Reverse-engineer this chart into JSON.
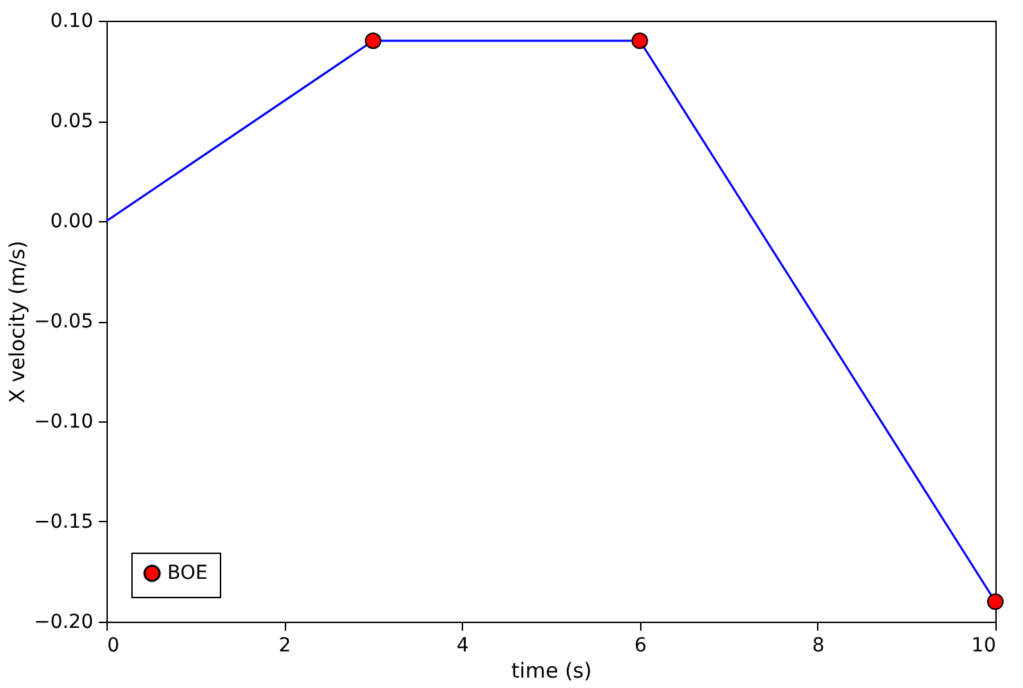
{
  "chart_data": {
    "type": "line",
    "xlabel": "time (s)",
    "ylabel": "X velocity (m/s)",
    "series": [
      {
        "type": "line",
        "color": "#0000ff",
        "x": [
          0,
          3,
          6,
          10
        ],
        "values": [
          0,
          0.09,
          0.09,
          -0.19
        ],
        "line_style": "solid",
        "marker": "none"
      },
      {
        "type": "scatter",
        "name": "BOE",
        "color": "#ff0000",
        "x": [
          3,
          6,
          10
        ],
        "values": [
          0.09,
          0.09,
          -0.19
        ],
        "marker": "circle"
      }
    ],
    "xlim": [
      0,
      10
    ],
    "xticks": [
      0,
      2,
      4,
      6,
      8,
      10
    ],
    "ylim": [
      -0.2,
      0.1
    ],
    "yticks": [
      {
        "value": -0.2,
        "label": "−0.20"
      },
      {
        "value": -0.15,
        "label": "−0.15"
      },
      {
        "value": -0.1,
        "label": "−0.10"
      },
      {
        "value": -0.05,
        "label": "−0.05"
      },
      {
        "value": 0,
        "label": "0.00"
      },
      {
        "value": 0.05,
        "label": "0.05"
      },
      {
        "value": 0.1,
        "label": "0.10"
      }
    ],
    "grid": false,
    "legend": "bottom left"
  }
}
